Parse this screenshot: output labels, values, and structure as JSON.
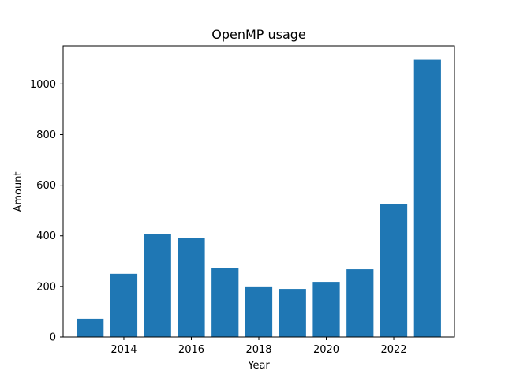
{
  "chart_data": {
    "type": "bar",
    "title": "OpenMP usage",
    "xlabel": "Year",
    "ylabel": "Amount",
    "x": [
      2013,
      2014,
      2015,
      2016,
      2017,
      2018,
      2019,
      2020,
      2021,
      2022,
      2023
    ],
    "values": [
      72,
      250,
      408,
      390,
      272,
      200,
      190,
      218,
      268,
      526,
      1096
    ],
    "xlim": [
      2012.2,
      2023.8
    ],
    "ylim": [
      0,
      1150.8
    ],
    "xticks": [
      2014,
      2016,
      2018,
      2020,
      2022
    ],
    "yticks": [
      0,
      200,
      400,
      600,
      800,
      1000
    ],
    "bar_color": "#1f77b4",
    "grid": false,
    "legend": false
  }
}
